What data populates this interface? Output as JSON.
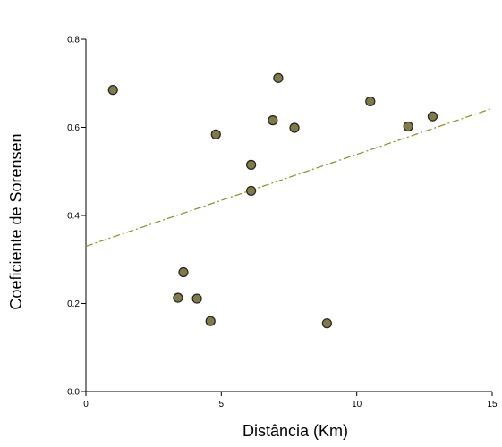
{
  "chart_data": {
    "type": "scatter",
    "title": "",
    "xlabel": "Distância (Km)",
    "ylabel": "Coeficiente de Sorensen",
    "xlim": [
      0,
      15
    ],
    "ylim": [
      0,
      0.8
    ],
    "x_ticks": [
      0,
      5,
      10,
      15
    ],
    "x_tick_labels": [
      "0",
      "5",
      "10",
      "15"
    ],
    "y_ticks": [
      0,
      0.2,
      0.4,
      0.6,
      0.8
    ],
    "y_tick_labels": [
      "0.0",
      "0.2",
      "0.4",
      "0.6",
      "0.8"
    ],
    "grid": false,
    "points": [
      {
        "x": 1.0,
        "y": 0.685
      },
      {
        "x": 3.4,
        "y": 0.213
      },
      {
        "x": 3.6,
        "y": 0.271
      },
      {
        "x": 4.1,
        "y": 0.211
      },
      {
        "x": 4.6,
        "y": 0.16
      },
      {
        "x": 4.8,
        "y": 0.584
      },
      {
        "x": 6.1,
        "y": 0.515
      },
      {
        "x": 6.1,
        "y": 0.456
      },
      {
        "x": 6.9,
        "y": 0.616
      },
      {
        "x": 7.1,
        "y": 0.712
      },
      {
        "x": 7.7,
        "y": 0.599
      },
      {
        "x": 8.9,
        "y": 0.155
      },
      {
        "x": 10.5,
        "y": 0.659
      },
      {
        "x": 11.9,
        "y": 0.602
      },
      {
        "x": 12.8,
        "y": 0.625
      }
    ],
    "trend_line": {
      "x": [
        0,
        15
      ],
      "y": [
        0.33,
        0.643
      ]
    },
    "colors": {
      "point_fill": "#7f7a46",
      "point_stroke": "#222222",
      "trend_line": "#8c8c1e"
    }
  }
}
